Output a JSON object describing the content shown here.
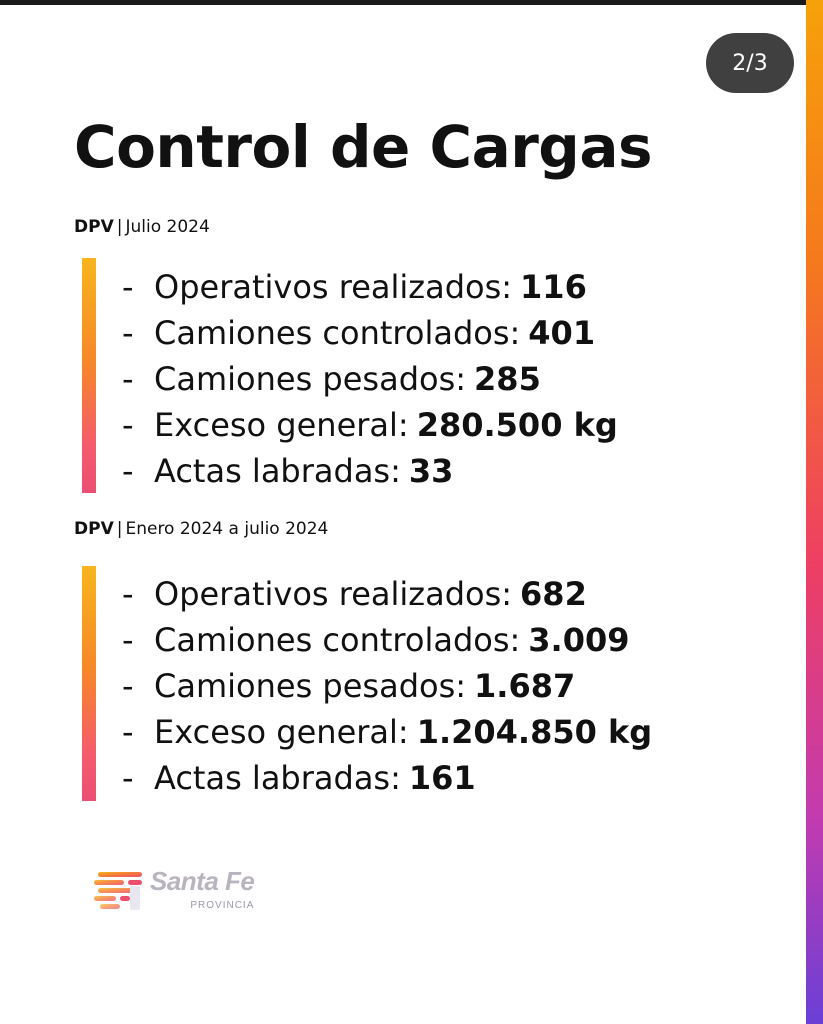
{
  "page_indicator": "2/3",
  "title": "Control de Cargas",
  "sections": [
    {
      "org": "DPV",
      "separator": "|",
      "period": "Julio 2024",
      "stats": [
        {
          "label": "Operativos realizados:",
          "value": "116"
        },
        {
          "label": "Camiones controlados:",
          "value": "401"
        },
        {
          "label": "Camiones pesados:",
          "value": "285"
        },
        {
          "label": "Exceso general:",
          "value": "280.500 kg"
        },
        {
          "label": "Actas labradas:",
          "value": "33"
        }
      ]
    },
    {
      "org": "DPV",
      "separator": "|",
      "period": "Enero 2024 a julio 2024",
      "stats": [
        {
          "label": "Operativos realizados:",
          "value": "682"
        },
        {
          "label": "Camiones controlados:",
          "value": "3.009"
        },
        {
          "label": "Camiones pesados:",
          "value": "1.687"
        },
        {
          "label": "Exceso general:",
          "value": "1.204.850 kg"
        },
        {
          "label": "Actas labradas:",
          "value": "161"
        }
      ]
    }
  ],
  "bullet": "-",
  "logo": {
    "name": "Santa Fe",
    "subtitle": "PROVINCIA",
    "icon": "santa-fe-logo-icon"
  },
  "colors": {
    "accent_top": "#f7b51c",
    "accent_bottom": "#ea4f73",
    "badge_bg": "#404040"
  }
}
